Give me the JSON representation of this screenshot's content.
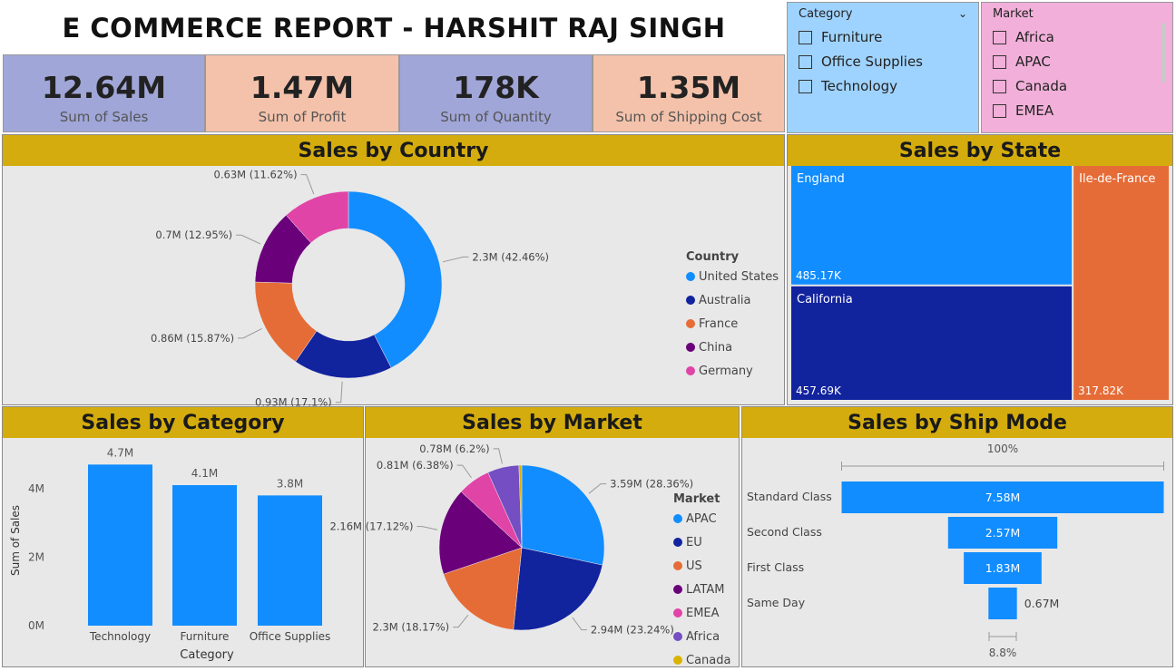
{
  "report_title": "E COMMERCE REPORT - HARSHIT RAJ SINGH",
  "kpis": [
    {
      "value": "12.64M",
      "label": "Sum of Sales"
    },
    {
      "value": "1.47M",
      "label": "Sum of Profit"
    },
    {
      "value": "178K",
      "label": "Sum of Quantity"
    },
    {
      "value": "1.35M",
      "label": "Sum of Shipping Cost"
    }
  ],
  "slicers": {
    "category": {
      "title": "Category",
      "items": [
        "Furniture",
        "Office Supplies",
        "Technology"
      ]
    },
    "market": {
      "title": "Market",
      "items": [
        "Africa",
        "APAC",
        "Canada",
        "EMEA"
      ]
    }
  },
  "panels": {
    "country": "Sales by Country",
    "state": "Sales by State",
    "category": "Sales by Category",
    "market": "Sales by Market",
    "shipmode": "Sales by Ship Mode"
  },
  "chart_data": [
    {
      "type": "pie",
      "variant": "donut",
      "title": "Sales by Country",
      "legend_title": "Country",
      "categories": [
        "United States",
        "Australia",
        "France",
        "China",
        "Germany"
      ],
      "values": [
        2.3,
        0.93,
        0.86,
        0.7,
        0.63
      ],
      "labels": [
        "2.3M (42.46%)",
        "0.93M (17.1%)",
        "0.86M (15.87%)",
        "0.7M (12.95%)",
        "0.63M (11.62%)"
      ],
      "colors": [
        "#118dff",
        "#12239e",
        "#e66c37",
        "#6b007b",
        "#e044a7"
      ]
    },
    {
      "type": "treemap",
      "title": "Sales by State",
      "categories": [
        "England",
        "California",
        "Ile-de-France"
      ],
      "values": [
        485.17,
        457.69,
        317.82
      ],
      "labels": [
        "485.17K",
        "457.69K",
        "317.82K"
      ],
      "colors": [
        "#118dff",
        "#12239e",
        "#e66c37"
      ]
    },
    {
      "type": "bar",
      "title": "Sales by Category",
      "categories": [
        "Technology",
        "Furniture",
        "Office Supplies"
      ],
      "values": [
        4.7,
        4.1,
        3.8
      ],
      "labels": [
        "4.7M",
        "4.1M",
        "3.8M"
      ],
      "xlabel": "Category",
      "ylabel": "Sum of Sales",
      "yticks": [
        "0M",
        "2M",
        "4M"
      ],
      "ylim": [
        0,
        5
      ],
      "color": "#118dff"
    },
    {
      "type": "pie",
      "title": "Sales by Market",
      "legend_title": "Market",
      "categories": [
        "APAC",
        "EU",
        "US",
        "LATAM",
        "EMEA",
        "Africa",
        "Canada"
      ],
      "values": [
        3.59,
        2.94,
        2.3,
        2.16,
        0.81,
        0.78,
        0.07
      ],
      "labels": [
        "3.59M (28.36%)",
        "2.94M (23.24%)",
        "2.3M (18.17%)",
        "2.16M (17.12%)",
        "0.81M (6.38%)",
        "0.78M (6.2%)",
        ""
      ],
      "colors": [
        "#118dff",
        "#12239e",
        "#e66c37",
        "#6b007b",
        "#e044a7",
        "#744ec2",
        "#d9b300"
      ]
    },
    {
      "type": "funnel",
      "title": "Sales by Ship Mode",
      "categories": [
        "Standard Class",
        "Second Class",
        "First Class",
        "Same Day"
      ],
      "values": [
        7.58,
        2.57,
        1.83,
        0.67
      ],
      "labels": [
        "7.58M",
        "2.57M",
        "1.83M",
        "0.67M"
      ],
      "top_pct": "100%",
      "bottom_pct": "8.8%",
      "color": "#118dff"
    }
  ]
}
